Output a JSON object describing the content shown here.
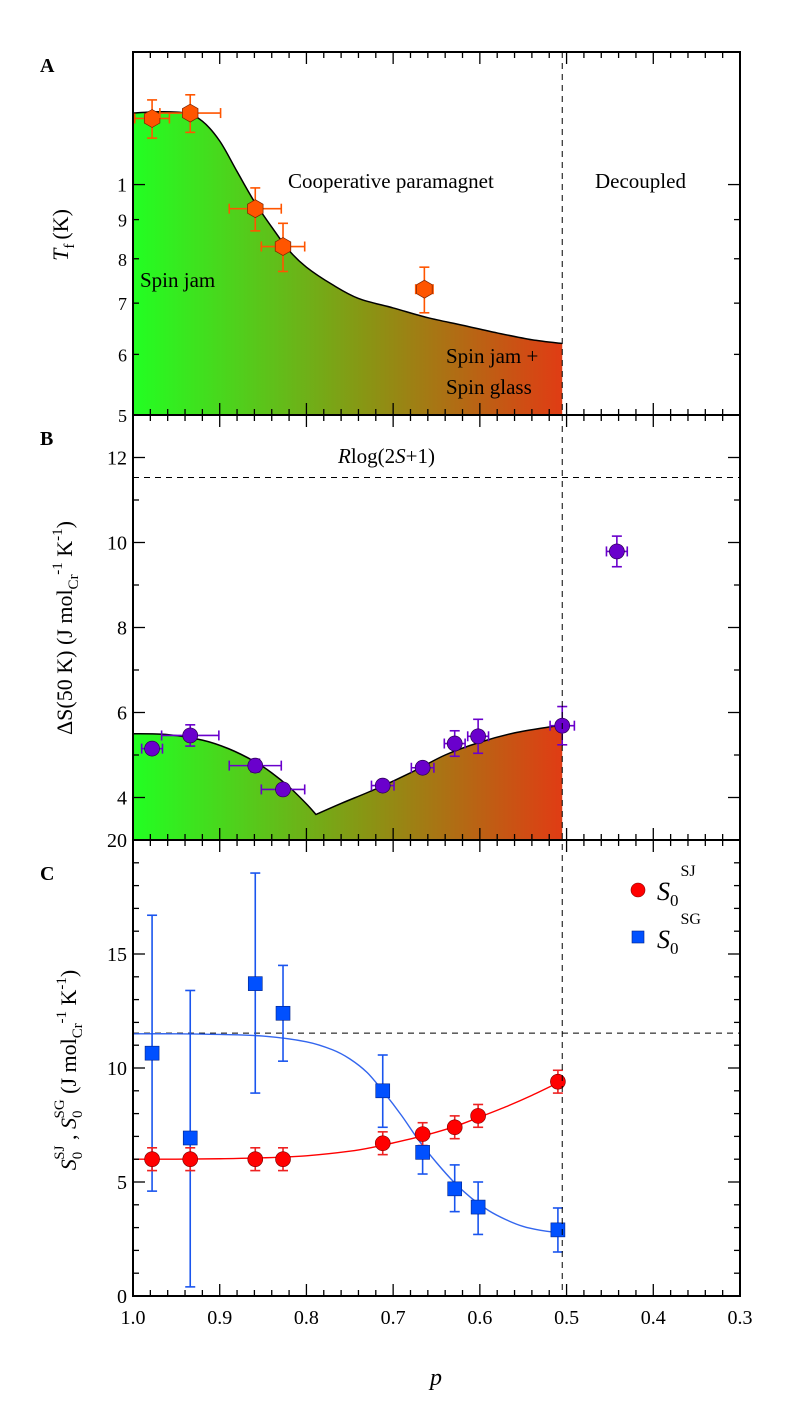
{
  "chart_data": [
    {
      "panel": "A",
      "type": "scatter",
      "yscale": "log",
      "xlabel": "p",
      "ylabel": "T_f (K)",
      "ylabel_main": "T",
      "ylabel_sub": "f",
      "ylabel_unit": "(K)",
      "xlim": [
        1.0,
        0.3
      ],
      "ylim": [
        0.5,
        1.49
      ],
      "y_tick_values": [
        0.5,
        0.6,
        0.7,
        0.8,
        0.9,
        1.0
      ],
      "y_tick_labels": [
        "5",
        "6",
        "7",
        "8",
        "9",
        "1"
      ],
      "grid": false,
      "series": [
        {
          "name": "T_f",
          "marker": "hexagon",
          "color": "#FF5500",
          "points": [
            {
              "x": 0.978,
              "y": 1.22,
              "xerr": 0.02,
              "yerr": 0.07
            },
            {
              "x": 0.934,
              "y": 1.24,
              "xerr": 0.035,
              "yerr": 0.07
            },
            {
              "x": 0.859,
              "y": 0.93,
              "xerr": 0.03,
              "yerr": 0.06
            },
            {
              "x": 0.827,
              "y": 0.83,
              "xerr": 0.025,
              "yerr": 0.06
            },
            {
              "x": 0.664,
              "y": 0.73,
              "xerr": 0.01,
              "yerr": 0.05
            }
          ]
        }
      ],
      "boundary_curve": {
        "x": [
          1.0,
          0.97,
          0.94,
          0.92,
          0.9,
          0.88,
          0.86,
          0.84,
          0.82,
          0.8,
          0.77,
          0.74,
          0.7,
          0.66,
          0.62,
          0.58,
          0.54,
          0.505
        ],
        "y": [
          1.24,
          1.245,
          1.24,
          1.21,
          1.14,
          1.04,
          0.95,
          0.88,
          0.82,
          0.78,
          0.74,
          0.71,
          0.69,
          0.67,
          0.655,
          0.64,
          0.627,
          0.62
        ]
      },
      "vline_x": 0.505,
      "regions": {
        "spin_jam": "Spin jam",
        "cooperative": "Cooperative paramagnet",
        "decoupled": "Decoupled",
        "mixed_line1": "Spin jam +",
        "mixed_line2": "Spin glass"
      },
      "gradient_colors": [
        "#22FF22",
        "#8A9414",
        "#E03C14"
      ]
    },
    {
      "panel": "B",
      "type": "scatter",
      "xlabel": "p",
      "ylabel": "ΔS(50 K) (J mol_Cr^-1 K^-1)",
      "xlim": [
        1.0,
        0.3
      ],
      "ylim": [
        3,
        13
      ],
      "y_tick_labels": [
        "4",
        "6",
        "8",
        "10",
        "12"
      ],
      "grid": false,
      "hline": {
        "y": 11.53,
        "label": "Rlog(2S+1)"
      },
      "series": [
        {
          "name": "ΔS(50 K)",
          "marker": "circle",
          "color": "#6A00CC",
          "points": [
            {
              "x": 0.978,
              "y": 5.15,
              "xerr": 0.012,
              "yerr": 0.1
            },
            {
              "x": 0.934,
              "y": 5.46,
              "xerr": 0.033,
              "yerr": 0.25
            },
            {
              "x": 0.859,
              "y": 4.75,
              "xerr": 0.03,
              "yerr": 0.15
            },
            {
              "x": 0.827,
              "y": 4.19,
              "xerr": 0.025,
              "yerr": 0.12
            },
            {
              "x": 0.712,
              "y": 4.28,
              "xerr": 0.013,
              "yerr": 0.08
            },
            {
              "x": 0.666,
              "y": 4.7,
              "xerr": 0.013,
              "yerr": 0.08
            },
            {
              "x": 0.629,
              "y": 5.27,
              "xerr": 0.012,
              "yerr": 0.3
            },
            {
              "x": 0.602,
              "y": 5.44,
              "xerr": 0.012,
              "yerr": 0.4
            },
            {
              "x": 0.505,
              "y": 5.69,
              "xerr": 0.014,
              "yerr": 0.45
            },
            {
              "x": 0.442,
              "y": 9.79,
              "xerr": 0.012,
              "yerr": 0.36
            }
          ]
        }
      ],
      "boundary_curve": {
        "x": [
          1.0,
          0.96,
          0.92,
          0.89,
          0.86,
          0.84,
          0.82,
          0.8,
          0.789,
          0.76,
          0.72,
          0.68,
          0.64,
          0.6,
          0.56,
          0.52,
          0.505
        ],
        "y": [
          5.5,
          5.48,
          5.35,
          5.15,
          4.85,
          4.58,
          4.25,
          3.85,
          3.6,
          3.86,
          4.2,
          4.58,
          5.0,
          5.3,
          5.52,
          5.66,
          5.7
        ]
      },
      "vline_x": 0.505
    },
    {
      "panel": "C",
      "type": "scatter",
      "xlabel": "p",
      "ylabel": "S0^SJ, S0^SG (J mol_Cr^-1 K^-1)",
      "xlim": [
        1.0,
        0.3
      ],
      "ylim": [
        0,
        20
      ],
      "x_tick_labels": [
        "1.0",
        "0.9",
        "0.8",
        "0.7",
        "0.6",
        "0.5",
        "0.4",
        "0.3"
      ],
      "y_tick_labels": [
        "0",
        "5",
        "10",
        "15",
        "20"
      ],
      "grid": false,
      "hline": {
        "y": 11.53
      },
      "legend": {
        "placement": "top-right"
      },
      "series": [
        {
          "name": "S0^SJ",
          "label_main": "S",
          "label_sub": "0",
          "label_sup": "SJ",
          "marker": "circle",
          "color": "#FF0000",
          "points": [
            {
              "x": 0.978,
              "y": 6.0,
              "ylo": 5.5,
              "yhi": 6.5
            },
            {
              "x": 0.934,
              "y": 6.0,
              "ylo": 5.5,
              "yhi": 6.5
            },
            {
              "x": 0.859,
              "y": 6.0,
              "ylo": 5.5,
              "yhi": 6.5
            },
            {
              "x": 0.827,
              "y": 6.0,
              "ylo": 5.5,
              "yhi": 6.5
            },
            {
              "x": 0.712,
              "y": 6.7,
              "ylo": 6.2,
              "yhi": 7.2
            },
            {
              "x": 0.666,
              "y": 7.1,
              "ylo": 6.6,
              "yhi": 7.6
            },
            {
              "x": 0.629,
              "y": 7.4,
              "ylo": 6.9,
              "yhi": 7.9
            },
            {
              "x": 0.602,
              "y": 7.9,
              "ylo": 7.4,
              "yhi": 8.4
            },
            {
              "x": 0.51,
              "y": 9.4,
              "ylo": 8.9,
              "yhi": 9.9
            }
          ],
          "fit": {
            "x": [
              1.0,
              0.95,
              0.9,
              0.85,
              0.8,
              0.75,
              0.72,
              0.69,
              0.66,
              0.63,
              0.6,
              0.57,
              0.54,
              0.51
            ],
            "y": [
              6.0,
              6.0,
              6.02,
              6.06,
              6.15,
              6.35,
              6.55,
              6.8,
              7.08,
              7.42,
              7.85,
              8.3,
              8.8,
              9.35
            ]
          }
        },
        {
          "name": "S0^SG",
          "label_main": "S",
          "label_sub": "0",
          "label_sup": "SG",
          "marker": "square",
          "color": "#0050FF",
          "points": [
            {
              "x": 0.978,
              "y": 10.65,
              "ylo": 4.6,
              "yhi": 16.7
            },
            {
              "x": 0.934,
              "y": 6.93,
              "ylo": 0.4,
              "yhi": 13.4
            },
            {
              "x": 0.859,
              "y": 13.7,
              "ylo": 8.9,
              "yhi": 18.55
            },
            {
              "x": 0.827,
              "y": 12.4,
              "ylo": 10.3,
              "yhi": 14.5
            },
            {
              "x": 0.712,
              "y": 9.0,
              "ylo": 7.4,
              "yhi": 10.57
            },
            {
              "x": 0.666,
              "y": 6.3,
              "ylo": 5.35,
              "yhi": 7.3
            },
            {
              "x": 0.629,
              "y": 4.7,
              "ylo": 3.7,
              "yhi": 5.75
            },
            {
              "x": 0.602,
              "y": 3.9,
              "ylo": 2.7,
              "yhi": 5.0
            },
            {
              "x": 0.51,
              "y": 2.9,
              "ylo": 1.93,
              "yhi": 3.86
            }
          ],
          "fit": {
            "x": [
              1.0,
              0.95,
              0.9,
              0.85,
              0.8,
              0.77,
              0.75,
              0.73,
              0.71,
              0.69,
              0.67,
              0.65,
              0.63,
              0.61,
              0.59,
              0.57,
              0.55,
              0.53,
              0.51
            ],
            "y": [
              11.5,
              11.5,
              11.47,
              11.4,
              11.15,
              10.8,
              10.4,
              9.8,
              8.9,
              7.9,
              6.8,
              5.85,
              5.0,
              4.3,
              3.75,
              3.35,
              3.05,
              2.88,
              2.78
            ]
          }
        }
      ],
      "vline_x": 0.505
    }
  ],
  "labels": {
    "panel_a": "A",
    "panel_b": "B",
    "panel_c": "C",
    "x_axis_title": "p",
    "b_ylabel": "ΔS(50 K) (J mol",
    "b_ylabel_sub": "Cr",
    "b_ylabel_sup1": "-1",
    "b_ylabel_k": " K",
    "b_ylabel_sup2": "-1",
    "b_ylabel_close": ")",
    "b_hline_R": "R",
    "b_hline_log": "log(2",
    "b_hline_S": "S",
    "b_hline_rest": "+1)",
    "c_ylabel_S": "S",
    "c_ylabel_0": "0",
    "c_ylabel_SJ": "SJ",
    "c_ylabel_comma": " , ",
    "c_ylabel_SG": "SG",
    "c_ylabel_unit": " (J mol",
    "c_ylabel_Cr": "Cr",
    "c_ylabel_m1": "-1",
    "c_ylabel_K": " K",
    "c_ylabel_m1b": "-1",
    "c_ylabel_close": ")"
  }
}
